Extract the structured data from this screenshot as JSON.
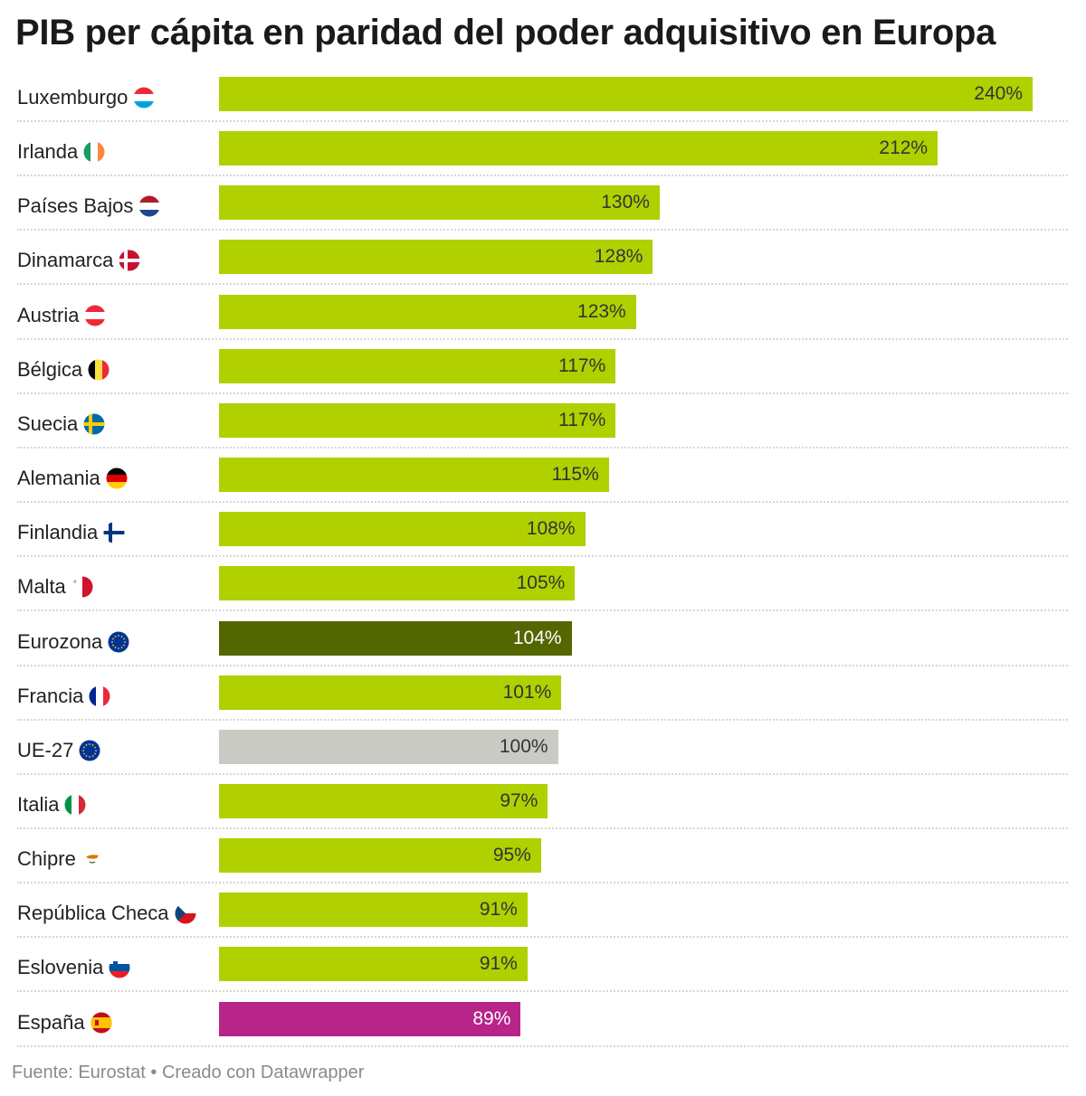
{
  "title": "PIB per cápita en paridad del poder adquisitivo en Europa",
  "footer": "Fuente: Eurostat • Creado con Datawrapper",
  "colors": {
    "default": "#b0d000",
    "eurozona": "#546600",
    "ue27": "#cacac5",
    "espana": "#b72589",
    "label_dark": "#333333",
    "label_light": "#ffffff"
  },
  "chart_data": {
    "type": "bar",
    "orientation": "horizontal",
    "title": "PIB per cápita en paridad del poder adquisitivo en Europa",
    "unit": "%",
    "xlim": [
      0,
      240
    ],
    "grid": false,
    "categories": [
      "Luxemburgo",
      "Irlanda",
      "Países Bajos",
      "Dinamarca",
      "Austria",
      "Bélgica",
      "Suecia",
      "Alemania",
      "Finlandia",
      "Malta",
      "Eurozona",
      "Francia",
      "UE-27",
      "Italia",
      "Chipre",
      "República Checa",
      "Eslovenia",
      "España"
    ],
    "values": [
      240,
      212,
      130,
      128,
      123,
      117,
      117,
      115,
      108,
      105,
      104,
      101,
      100,
      97,
      95,
      91,
      91,
      89
    ],
    "value_labels": [
      "240%",
      "212%",
      "130%",
      "128%",
      "123%",
      "117%",
      "117%",
      "115%",
      "108%",
      "105%",
      "104%",
      "101%",
      "100%",
      "97%",
      "95%",
      "91%",
      "91%",
      "89%"
    ],
    "flags": [
      "flag-lu",
      "flag-ie",
      "flag-nl",
      "flag-dk",
      "flag-at",
      "flag-be",
      "flag-se",
      "flag-de",
      "flag-fi",
      "flag-mt",
      "flag-eu",
      "flag-fr",
      "flag-eu",
      "flag-it",
      "flag-cy",
      "flag-cz",
      "flag-si",
      "flag-es"
    ],
    "highlight": {
      "Eurozona": "#546600",
      "UE-27": "#cacac5",
      "España": "#b72589"
    }
  }
}
